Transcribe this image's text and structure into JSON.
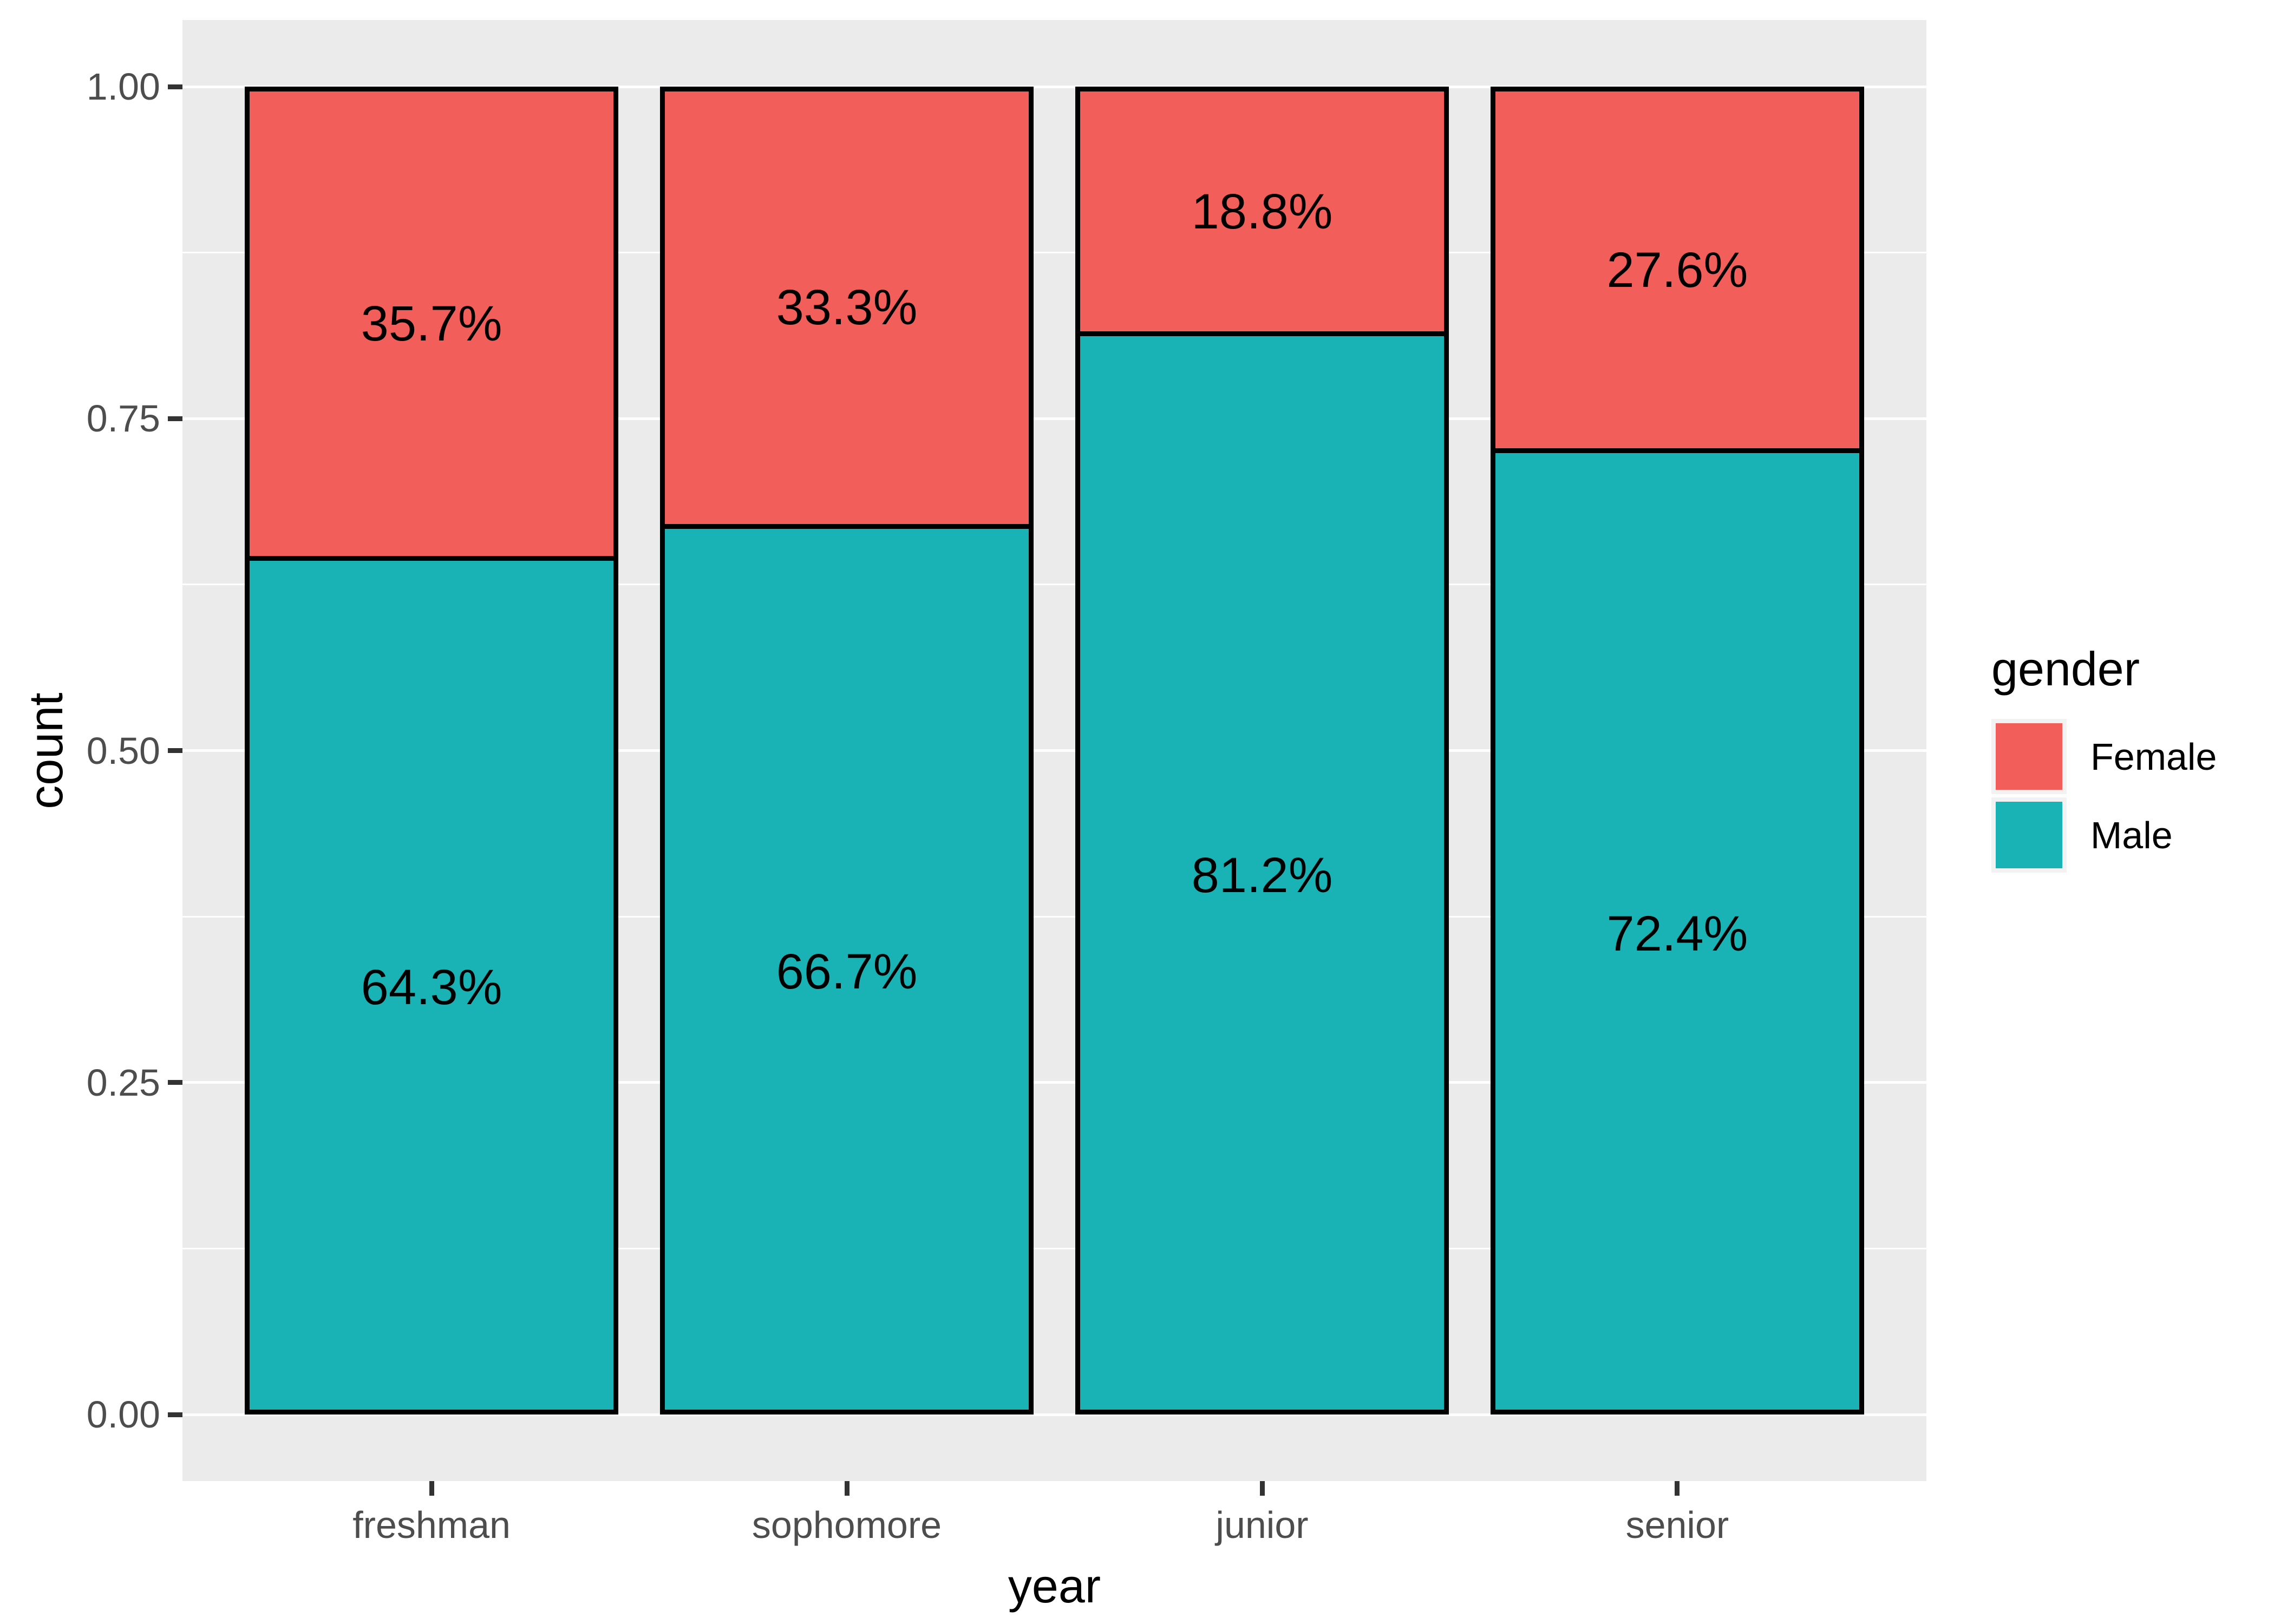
{
  "figure": {
    "background": "#FFFFFF",
    "panel_background": "#EBEBEB",
    "grid_color": "#FFFFFF",
    "bar_outline_color": "#000000",
    "axis_text_color": "#4D4D4D",
    "tick_mark_color": "#333333",
    "axis_title_color": "#000000"
  },
  "chart_data": {
    "type": "bar",
    "subtype": "stacked_proportion_with_percent_labels",
    "title": "",
    "xlabel": "year",
    "ylabel": "count",
    "categories": [
      "freshman",
      "sophomore",
      "junior",
      "senior"
    ],
    "series": [
      {
        "name": "Female",
        "color": "#F25F5A",
        "values": [
          0.357,
          0.333,
          0.188,
          0.276
        ],
        "labels": [
          "35.7%",
          "33.3%",
          "18.8%",
          "27.6%"
        ]
      },
      {
        "name": "Male",
        "color": "#19B3B5",
        "values": [
          0.643,
          0.667,
          0.812,
          0.724
        ],
        "labels": [
          "64.3%",
          "66.7%",
          "81.2%",
          "72.4%"
        ]
      }
    ],
    "ylim": [
      0,
      1
    ],
    "y_major_ticks": [
      {
        "value": 1.0,
        "label": "1.00"
      },
      {
        "value": 0.75,
        "label": "0.75"
      },
      {
        "value": 0.5,
        "label": "0.50"
      },
      {
        "value": 0.25,
        "label": "0.25"
      },
      {
        "value": 0.0,
        "label": "0.00"
      }
    ],
    "y_minor_ticks": [
      0.875,
      0.625,
      0.375,
      0.125
    ],
    "grid": true,
    "legend": {
      "title": "gender",
      "position": "right",
      "entries": [
        {
          "label": "Female",
          "color": "#F25F5A"
        },
        {
          "label": "Male",
          "color": "#19B3B5"
        }
      ]
    }
  }
}
